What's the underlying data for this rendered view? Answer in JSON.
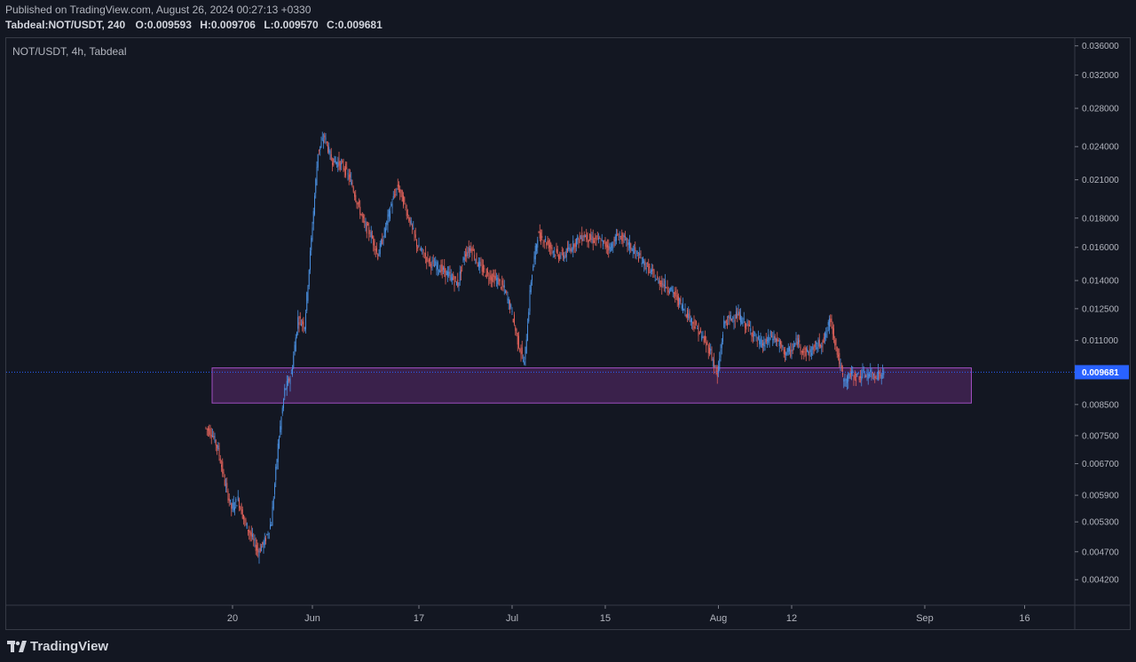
{
  "header": {
    "published": "Published on TradingView.com, August 26, 2024 00:27:13 +0330",
    "symbol": "Tabdeal:NOT/USDT, 240",
    "ohlc": [
      {
        "k": "O:",
        "v": "0.009593"
      },
      {
        "k": "H:",
        "v": "0.009706"
      },
      {
        "k": "L:",
        "v": "0.009570"
      },
      {
        "k": "C:",
        "v": "0.009681"
      }
    ]
  },
  "legend": {
    "title": "NOT/USDT, 4h, Tabdeal"
  },
  "footer": {
    "brand": "TradingView"
  },
  "colors": {
    "background": "#131722",
    "up": "#4a8fe0",
    "down": "#e0625a",
    "zone_fill": "#5b2a6e",
    "zone_stroke": "#a04ec0",
    "price_line": "#2962ff"
  },
  "chart_data": {
    "type": "line",
    "scale": "log",
    "title": "NOT/USDT, 4h, Tabdeal",
    "ylim": [
      0.0039,
      0.037
    ],
    "y_ticks": [
      "0.036000",
      "0.032000",
      "0.028000",
      "0.024000",
      "0.021000",
      "0.018000",
      "0.016000",
      "0.014000",
      "0.012500",
      "0.011000",
      "0.008500",
      "0.007500",
      "0.006700",
      "0.005900",
      "0.005300",
      "0.004700",
      "0.004200"
    ],
    "x_ticks": [
      "20",
      "Jun",
      "17",
      "Jul",
      "15",
      "Aug",
      "12",
      "Sep",
      "16"
    ],
    "current_price": "0.009681",
    "series": [
      {
        "x": [
          "2024-05-16",
          "2024-05-17",
          "2024-05-18",
          "2024-05-19",
          "2024-05-20",
          "2024-05-21",
          "2024-05-22",
          "2024-05-23",
          "2024-05-24",
          "2024-05-25",
          "2024-05-26",
          "2024-05-27",
          "2024-05-28",
          "2024-05-29",
          "2024-05-30",
          "2024-05-31",
          "2024-06-01",
          "2024-06-02",
          "2024-06-03",
          "2024-06-04",
          "2024-06-05",
          "2024-06-06",
          "2024-06-07",
          "2024-06-08",
          "2024-06-09",
          "2024-06-10",
          "2024-06-11",
          "2024-06-12",
          "2024-06-13",
          "2024-06-14",
          "2024-06-15",
          "2024-06-16",
          "2024-06-17",
          "2024-06-18",
          "2024-06-19",
          "2024-06-20",
          "2024-06-21",
          "2024-06-22",
          "2024-06-23",
          "2024-06-24",
          "2024-06-25",
          "2024-06-26",
          "2024-06-27",
          "2024-06-28",
          "2024-06-29",
          "2024-06-30",
          "2024-07-01",
          "2024-07-02",
          "2024-07-03",
          "2024-07-04",
          "2024-07-05",
          "2024-07-06",
          "2024-07-07",
          "2024-07-08",
          "2024-07-09",
          "2024-07-10",
          "2024-07-11",
          "2024-07-12",
          "2024-07-13",
          "2024-07-14",
          "2024-07-15",
          "2024-07-16",
          "2024-07-17",
          "2024-07-18",
          "2024-07-19",
          "2024-07-20",
          "2024-07-21",
          "2024-07-22",
          "2024-07-23",
          "2024-07-24",
          "2024-07-25",
          "2024-07-26",
          "2024-07-27",
          "2024-07-28",
          "2024-07-29",
          "2024-07-30",
          "2024-07-31",
          "2024-08-01",
          "2024-08-02",
          "2024-08-03",
          "2024-08-04",
          "2024-08-05",
          "2024-08-06",
          "2024-08-07",
          "2024-08-08",
          "2024-08-09",
          "2024-08-10",
          "2024-08-11",
          "2024-08-12",
          "2024-08-13",
          "2024-08-14",
          "2024-08-15",
          "2024-08-16",
          "2024-08-17",
          "2024-08-18",
          "2024-08-19",
          "2024-08-20",
          "2024-08-21",
          "2024-08-22",
          "2024-08-23",
          "2024-08-24",
          "2024-08-25"
        ],
        "values": [
          0.0076,
          0.0071,
          0.0062,
          0.0056,
          0.0058,
          0.0053,
          0.005,
          0.0047,
          0.0049,
          0.0053,
          0.0072,
          0.009,
          0.0096,
          0.012,
          0.0117,
          0.0165,
          0.0235,
          0.025,
          0.0228,
          0.0225,
          0.022,
          0.0208,
          0.019,
          0.0175,
          0.0168,
          0.0155,
          0.017,
          0.019,
          0.0205,
          0.019,
          0.0175,
          0.016,
          0.0155,
          0.015,
          0.0148,
          0.0145,
          0.0142,
          0.0138,
          0.0155,
          0.016,
          0.015,
          0.0145,
          0.0142,
          0.014,
          0.0135,
          0.0125,
          0.011,
          0.01,
          0.014,
          0.0168,
          0.0165,
          0.016,
          0.0155,
          0.0155,
          0.016,
          0.0165,
          0.0168,
          0.0165,
          0.0165,
          0.0162,
          0.016,
          0.0168,
          0.0165,
          0.016,
          0.0155,
          0.015,
          0.0145,
          0.014,
          0.0138,
          0.0135,
          0.013,
          0.0125,
          0.012,
          0.0115,
          0.011,
          0.0105,
          0.0095,
          0.0118,
          0.012,
          0.0122,
          0.0118,
          0.0115,
          0.011,
          0.0108,
          0.0112,
          0.011,
          0.0105,
          0.0105,
          0.011,
          0.0105,
          0.0105,
          0.0108,
          0.011,
          0.012,
          0.0105,
          0.0093,
          0.0096,
          0.0095,
          0.0096,
          0.0096,
          0.0096,
          0.0096
        ]
      }
    ],
    "zones": [
      {
        "from": "2024-05-16",
        "to": "2024-09-08",
        "low": 0.00855,
        "high": 0.00985
      }
    ]
  }
}
